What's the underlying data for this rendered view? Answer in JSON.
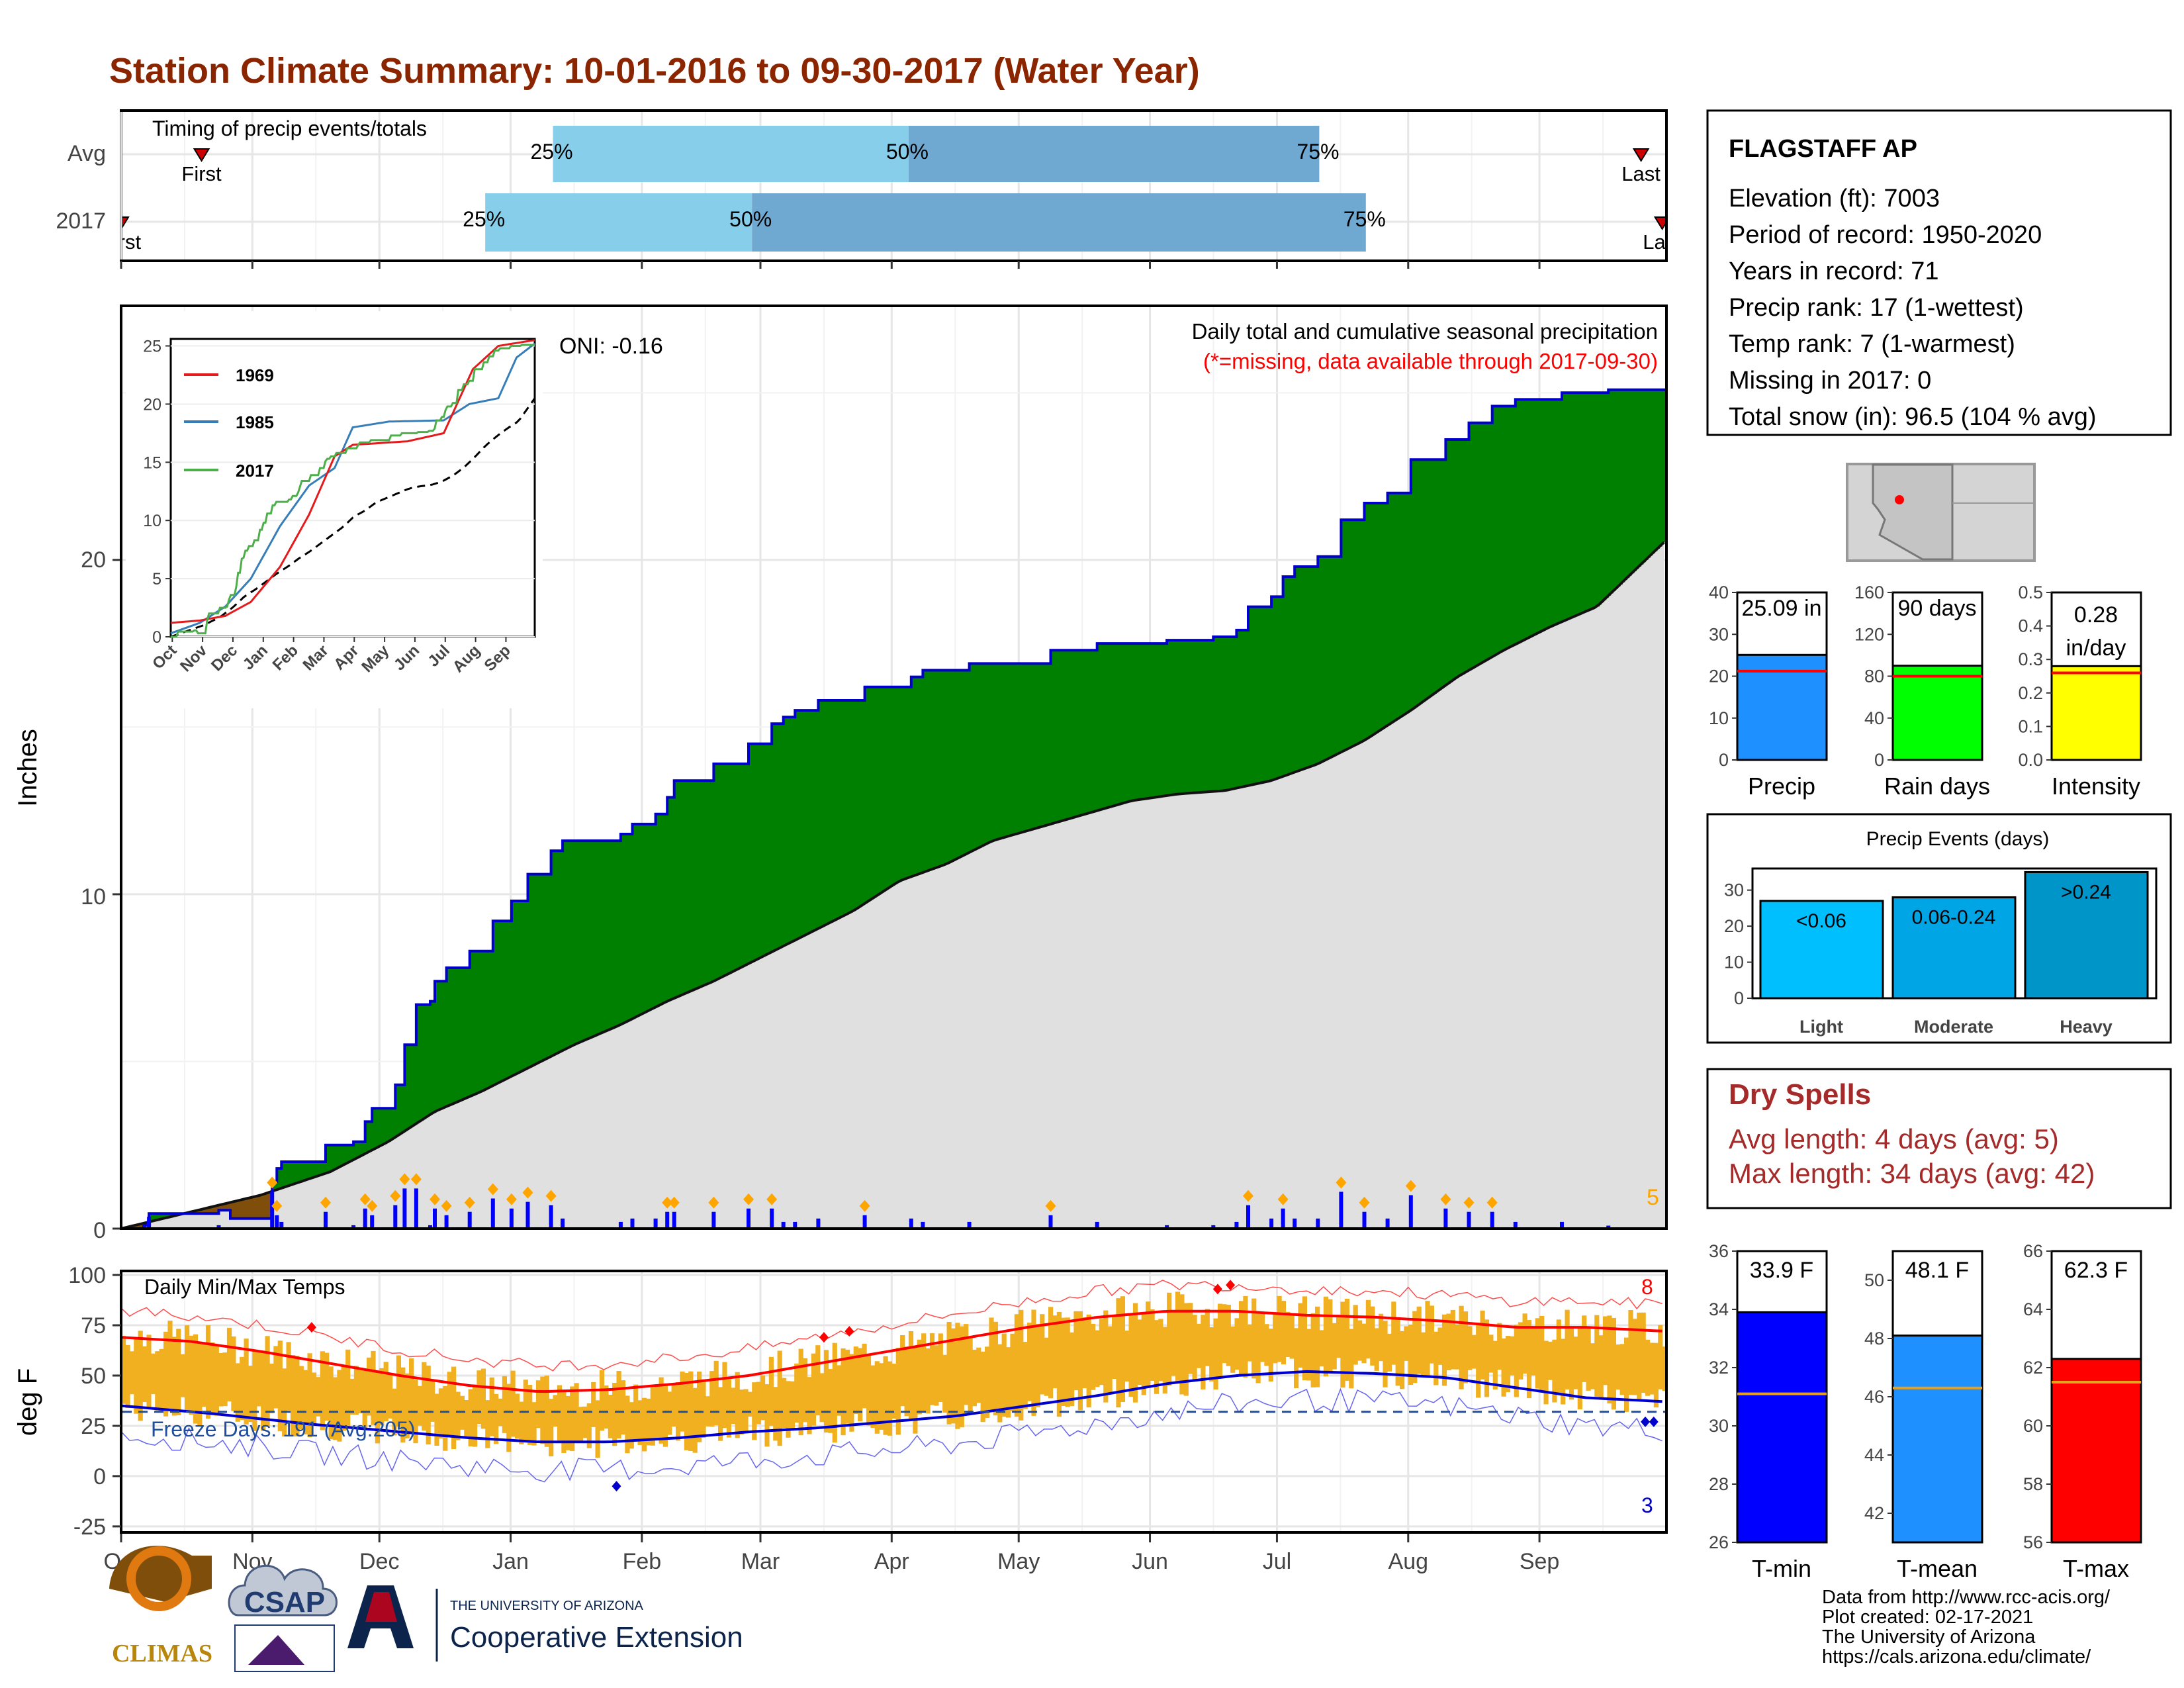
{
  "title": "Station Climate Summary: 10-01-2016 to 09-30-2017 (Water Year)",
  "colors": {
    "title": "#8b2500",
    "above_normal": "#008000",
    "below_normal": "#7f4e0a",
    "normal_fill": "#e0e0e0",
    "cumulative_line": "#0000cc",
    "daily_bars": "#0000ff",
    "light_bars": "#00bfff",
    "quartile_light": "#87ceeb",
    "quartile_dark": "#6fa8d0",
    "temp_bars": "#f0b020",
    "tmax_line": "#ff0000",
    "tmin_line": "#0000cc",
    "dry_spell_text": "#a52a2a"
  },
  "timing_panel": {
    "label": "Timing of precip events/totals",
    "rows": [
      "Avg",
      "2017"
    ],
    "pct_labels": [
      "25%",
      "50%",
      "75%"
    ],
    "first_label": "First",
    "last_label": "Last",
    "avg": {
      "first": "2016-10-20",
      "q25": "2017-01-11",
      "q50": "2017-04-05",
      "q75": "2017-07-11",
      "last": "2017-09-25"
    },
    "y2017": {
      "first": "2016-10-01",
      "q25": "2016-12-26",
      "q50": "2017-02-27",
      "q75": "2017-07-22",
      "last": "2017-09-30"
    }
  },
  "precip_panel": {
    "ylabel": "Inches",
    "y_ticks": [
      "0",
      "10",
      "20"
    ],
    "subtitle": "Daily total and cumulative seasonal precipitation",
    "missing_note": "(*=missing, data available through 2017-09-30)",
    "oni": "ONI: -0.16",
    "extreme_count": "5"
  },
  "inset": {
    "y_ticks": [
      "0",
      "5",
      "10",
      "15",
      "20",
      "25"
    ],
    "x_ticks": [
      "Oct",
      "Nov",
      "Dec",
      "Jan",
      "Feb",
      "Mar",
      "Apr",
      "May",
      "Jun",
      "Jul",
      "Aug",
      "Sep"
    ],
    "legend": [
      {
        "name": "1969",
        "color": "#e41a1c"
      },
      {
        "name": "1985",
        "color": "#377eb8"
      },
      {
        "name": "2017",
        "color": "#4daf4a"
      }
    ]
  },
  "temp_panel": {
    "ylabel": "deg F",
    "title": "Daily Min/Max Temps",
    "freeze_text": "Freeze Days: 191 (Avg:205)",
    "y_ticks": [
      "-25",
      "0",
      "25",
      "50",
      "75",
      "100"
    ],
    "hot_count": "8",
    "cold_count": "3"
  },
  "x_months": [
    "Oct",
    "Nov",
    "Dec",
    "Jan",
    "Feb",
    "Mar",
    "Apr",
    "May",
    "Jun",
    "Jul",
    "Aug",
    "Sep"
  ],
  "station": {
    "name": "FLAGSTAFF AP",
    "lines": [
      "Elevation (ft): 7003",
      "Period of record: 1950-2020",
      "Years in record: 71",
      "Precip rank: 17 (1-wettest)",
      "Temp rank: 7 (1-warmest)",
      "Missing in 2017: 0",
      "Total snow (in): 96.5 (104 % avg)"
    ]
  },
  "summary_bars": [
    {
      "label": "Precip",
      "value_label": "25.09 in",
      "value": 25.09,
      "avg": 21.2,
      "ymax": 40,
      "ticks": [
        "0",
        "10",
        "20",
        "30",
        "40"
      ],
      "color": "#1e90ff"
    },
    {
      "label": "Rain days",
      "value_label": "90 days",
      "value": 90,
      "avg": 80,
      "ymax": 160,
      "ticks": [
        "0",
        "40",
        "80",
        "120",
        "160"
      ],
      "color": "#00ff00"
    },
    {
      "label": "Intensity",
      "value_label": "0.28 in/day",
      "value": 0.28,
      "avg": 0.26,
      "ymax": 0.5,
      "ticks": [
        "0.0",
        "0.1",
        "0.2",
        "0.3",
        "0.4",
        "0.5"
      ],
      "color": "#ffff00"
    }
  ],
  "precip_events": {
    "title": "Precip Events (days)",
    "ticks": [
      "0",
      "10",
      "20",
      "30"
    ],
    "bars": [
      {
        "label": "Light",
        "bar_label": "<0.06",
        "value": 27,
        "color": "#00bfff"
      },
      {
        "label": "Moderate",
        "bar_label": "0.06-0.24",
        "value": 28,
        "color": "#00a5e5"
      },
      {
        "label": "Heavy",
        "bar_label": ">0.24",
        "value": 35,
        "color": "#0095c8"
      }
    ]
  },
  "dry_spells": {
    "title": "Dry Spells",
    "avg_line": "Avg length: 4 days (avg: 5)",
    "max_line": "Max length: 34 days (avg: 42)"
  },
  "temp_bars": [
    {
      "label": "T-min",
      "value_label": "33.9 F",
      "value": 33.9,
      "avg": 31.1,
      "ymin": 26,
      "ymax": 36,
      "ticks": [
        "26",
        "28",
        "30",
        "32",
        "34",
        "36"
      ],
      "color": "#0000ff"
    },
    {
      "label": "T-mean",
      "value_label": "48.1 F",
      "value": 48.1,
      "avg": 46.3,
      "ymin": 41,
      "ymax": 51,
      "ticks": [
        "42",
        "44",
        "46",
        "48",
        "50"
      ],
      "color": "#1e90ff"
    },
    {
      "label": "T-max",
      "value_label": "62.3 F",
      "value": 62.3,
      "avg": 61.5,
      "ymin": 56,
      "ymax": 66,
      "ticks": [
        "56",
        "58",
        "60",
        "62",
        "64",
        "66"
      ],
      "color": "#ff0000"
    }
  ],
  "footer": [
    "Data from http://www.rcc-acis.org/",
    "Plot created: 02-17-2021",
    "The University of Arizona",
    "https://cals.arizona.edu/climate/"
  ],
  "logos": {
    "climas": "CLIMAS",
    "csap": "CSAP",
    "ua_small": "THE UNIVERSITY OF ARIZONA",
    "ua_big": "Cooperative Extension"
  },
  "chart_data": {
    "type": "area",
    "title": "Station Climate Summary: 10-01-2016 to 09-30-2017 (Water Year)",
    "ylabel": "Inches",
    "ylim": [
      0,
      27
    ],
    "cumulative_2017": [
      [
        0,
        0
      ],
      [
        10,
        0.1
      ],
      [
        12,
        0.45
      ],
      [
        20,
        0.45
      ],
      [
        42,
        0.55
      ],
      [
        47,
        0.3
      ],
      [
        56,
        0.3
      ],
      [
        65,
        1.4
      ],
      [
        67,
        1.8
      ],
      [
        69,
        2.0
      ],
      [
        80,
        2.0
      ],
      [
        88,
        2.5
      ],
      [
        100,
        2.6
      ],
      [
        105,
        3.2
      ],
      [
        108,
        3.6
      ],
      [
        115,
        3.6
      ],
      [
        118,
        4.3
      ],
      [
        122,
        5.5
      ],
      [
        127,
        6.7
      ],
      [
        133,
        6.8
      ],
      [
        135,
        7.4
      ],
      [
        140,
        7.8
      ],
      [
        150,
        8.3
      ],
      [
        155,
        8.3
      ],
      [
        160,
        9.2
      ],
      [
        168,
        9.8
      ],
      [
        175,
        10.6
      ],
      [
        185,
        11.3
      ],
      [
        190,
        11.6
      ],
      [
        200,
        11.6
      ],
      [
        215,
        11.8
      ],
      [
        220,
        12.1
      ],
      [
        230,
        12.4
      ],
      [
        235,
        12.9
      ],
      [
        238,
        13.4
      ],
      [
        255,
        13.9
      ],
      [
        270,
        14.5
      ],
      [
        280,
        15.1
      ],
      [
        285,
        15.3
      ],
      [
        290,
        15.5
      ],
      [
        300,
        15.8
      ],
      [
        320,
        16.2
      ],
      [
        340,
        16.5
      ],
      [
        345,
        16.7
      ],
      [
        365,
        16.9
      ],
      [
        380,
        16.9
      ],
      [
        400,
        17.3
      ],
      [
        420,
        17.5
      ],
      [
        450,
        17.6
      ],
      [
        470,
        17.7
      ],
      [
        480,
        17.9
      ],
      [
        485,
        18.6
      ],
      [
        495,
        18.9
      ],
      [
        500,
        19.5
      ],
      [
        505,
        19.8
      ],
      [
        515,
        20.1
      ],
      [
        525,
        21.2
      ],
      [
        535,
        21.7
      ],
      [
        545,
        22.0
      ],
      [
        555,
        23.0
      ],
      [
        570,
        23.6
      ],
      [
        580,
        24.1
      ],
      [
        590,
        24.6
      ],
      [
        600,
        24.8
      ],
      [
        620,
        25.0
      ],
      [
        640,
        25.09
      ],
      [
        665,
        25.09
      ]
    ],
    "average": [
      [
        0,
        0
      ],
      [
        30,
        0.5
      ],
      [
        60,
        1.0
      ],
      [
        90,
        1.7
      ],
      [
        115,
        2.6
      ],
      [
        135,
        3.5
      ],
      [
        155,
        4.1
      ],
      [
        175,
        4.8
      ],
      [
        195,
        5.5
      ],
      [
        215,
        6.1
      ],
      [
        235,
        6.8
      ],
      [
        255,
        7.4
      ],
      [
        275,
        8.1
      ],
      [
        295,
        8.8
      ],
      [
        315,
        9.5
      ],
      [
        335,
        10.4
      ],
      [
        355,
        10.9
      ],
      [
        375,
        11.6
      ],
      [
        395,
        12.0
      ],
      [
        415,
        12.4
      ],
      [
        435,
        12.8
      ],
      [
        455,
        13.0
      ],
      [
        475,
        13.1
      ],
      [
        495,
        13.4
      ],
      [
        515,
        13.9
      ],
      [
        535,
        14.6
      ],
      [
        555,
        15.5
      ],
      [
        575,
        16.5
      ],
      [
        595,
        17.3
      ],
      [
        615,
        18.0
      ],
      [
        635,
        18.6
      ],
      [
        665,
        20.6
      ]
    ],
    "x_ticks": [
      "Oct",
      "Nov",
      "Dec",
      "Jan",
      "Feb",
      "Mar",
      "Apr",
      "May",
      "Jun",
      "Jul",
      "Aug",
      "Sep"
    ],
    "temperature": {
      "title": "Daily Min/Max Temps",
      "ylabel": "deg F",
      "ylim": [
        -28,
        102
      ],
      "freeze_threshold": 32,
      "avg_tmax": [
        [
          0,
          69
        ],
        [
          30,
          67
        ],
        [
          60,
          62
        ],
        [
          90,
          56
        ],
        [
          120,
          50
        ],
        [
          150,
          45
        ],
        [
          180,
          42
        ],
        [
          210,
          43
        ],
        [
          240,
          46
        ],
        [
          270,
          50
        ],
        [
          300,
          56
        ],
        [
          330,
          62
        ],
        [
          360,
          68
        ],
        [
          390,
          74
        ],
        [
          420,
          79
        ],
        [
          450,
          82
        ],
        [
          480,
          82
        ],
        [
          510,
          80
        ],
        [
          540,
          79
        ],
        [
          570,
          77
        ],
        [
          600,
          74
        ],
        [
          630,
          74
        ],
        [
          665,
          72
        ]
      ],
      "avg_tmin": [
        [
          0,
          35
        ],
        [
          40,
          31
        ],
        [
          80,
          26
        ],
        [
          120,
          22
        ],
        [
          150,
          19
        ],
        [
          180,
          17
        ],
        [
          210,
          17
        ],
        [
          240,
          19
        ],
        [
          270,
          22
        ],
        [
          300,
          24
        ],
        [
          330,
          27
        ],
        [
          360,
          30
        ],
        [
          390,
          35
        ],
        [
          420,
          40
        ],
        [
          450,
          46
        ],
        [
          480,
          50
        ],
        [
          510,
          52
        ],
        [
          540,
          51
        ],
        [
          570,
          49
        ],
        [
          600,
          44
        ],
        [
          630,
          39
        ],
        [
          665,
          37
        ]
      ]
    }
  }
}
